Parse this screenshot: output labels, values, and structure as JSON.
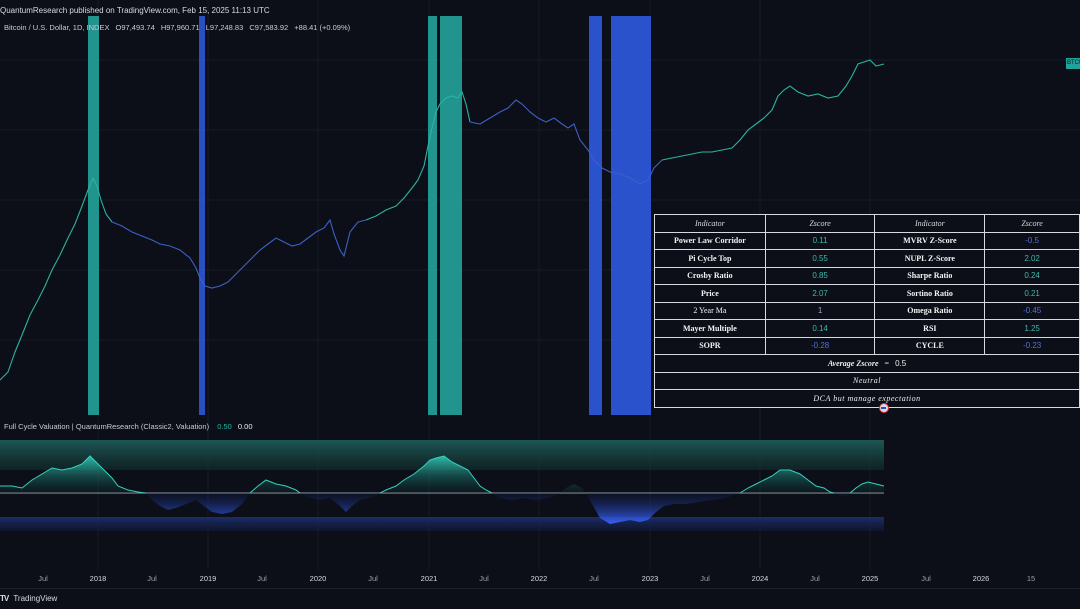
{
  "header": {
    "publish_line": "QuantumResearch published on TradingView.com, Feb 15, 2025 11:13 UTC",
    "symbol": "Bitcoin / U.S. Dollar, 1D, INDEX",
    "open": "O97,493.74",
    "high": "H97,960.71",
    "low": "L97,248.83",
    "close": "C97,583.92",
    "change": "+88.41 (+0.09%)"
  },
  "price_scale_tag": "BTCUSD",
  "table": {
    "headers": [
      "Indicator",
      "Zscore",
      "Indicator",
      "Zscore"
    ],
    "rows": [
      {
        "name1": "Power Law Corridor",
        "val1": "0.11",
        "name2": "MVRV Z-Score",
        "val2": "-0.5"
      },
      {
        "name1": "Pi Cycle Top",
        "val1": "0.55",
        "name2": "NUPL Z-Score",
        "val2": "2.02"
      },
      {
        "name1": "Crosby Ratio",
        "val1": "0.85",
        "name2": "Sharpe Ratio",
        "val2": "0.24"
      },
      {
        "name1": "Price",
        "val1": "2.07",
        "name2": "Sortino Ratio",
        "val2": "0.21"
      },
      {
        "name1": "2 Year Ma",
        "val1": "1",
        "name2": "Omega Ratio",
        "val2": "-0.45"
      },
      {
        "name1": "Mayer Multiple",
        "val1": "0.14",
        "name2": "RSI",
        "val2": "1.25"
      },
      {
        "name1": "SOPR",
        "val1": "-0.28",
        "name2": "CYCLE",
        "val2": "-0.23"
      }
    ],
    "average_label": "Average Zscore",
    "average_eq": "=",
    "average_value": "0.5",
    "state": "Neutral",
    "advice": "DCA but manage expectation"
  },
  "indicator": {
    "label": "Full Cycle Valuation | QuantumResearch (Classic2, Valuation)",
    "value1": "0.50",
    "value2": "0.00"
  },
  "time_axis": [
    {
      "label": "Jul",
      "year": false
    },
    {
      "label": "2018",
      "year": true
    },
    {
      "label": "Jul",
      "year": false
    },
    {
      "label": "2019",
      "year": true
    },
    {
      "label": "Jul",
      "year": false
    },
    {
      "label": "2020",
      "year": true
    },
    {
      "label": "Jul",
      "year": false
    },
    {
      "label": "2021",
      "year": true
    },
    {
      "label": "Jul",
      "year": false
    },
    {
      "label": "2022",
      "year": true
    },
    {
      "label": "Jul",
      "year": false
    },
    {
      "label": "2023",
      "year": true
    },
    {
      "label": "Jul",
      "year": false
    },
    {
      "label": "2024",
      "year": true
    },
    {
      "label": "Jul",
      "year": false
    },
    {
      "label": "2025",
      "year": true
    },
    {
      "label": "Jul",
      "year": false
    },
    {
      "label": "2026",
      "year": true
    },
    {
      "label": "15",
      "year": false
    }
  ],
  "footer": {
    "logo": "TV",
    "brand": "TradingView"
  },
  "colors": {
    "background": "#0c0f17",
    "teal": "#22a39a",
    "blue": "#2c56d6",
    "positive_text": "#3fb8aa",
    "negative_text": "#4f71e0"
  }
}
